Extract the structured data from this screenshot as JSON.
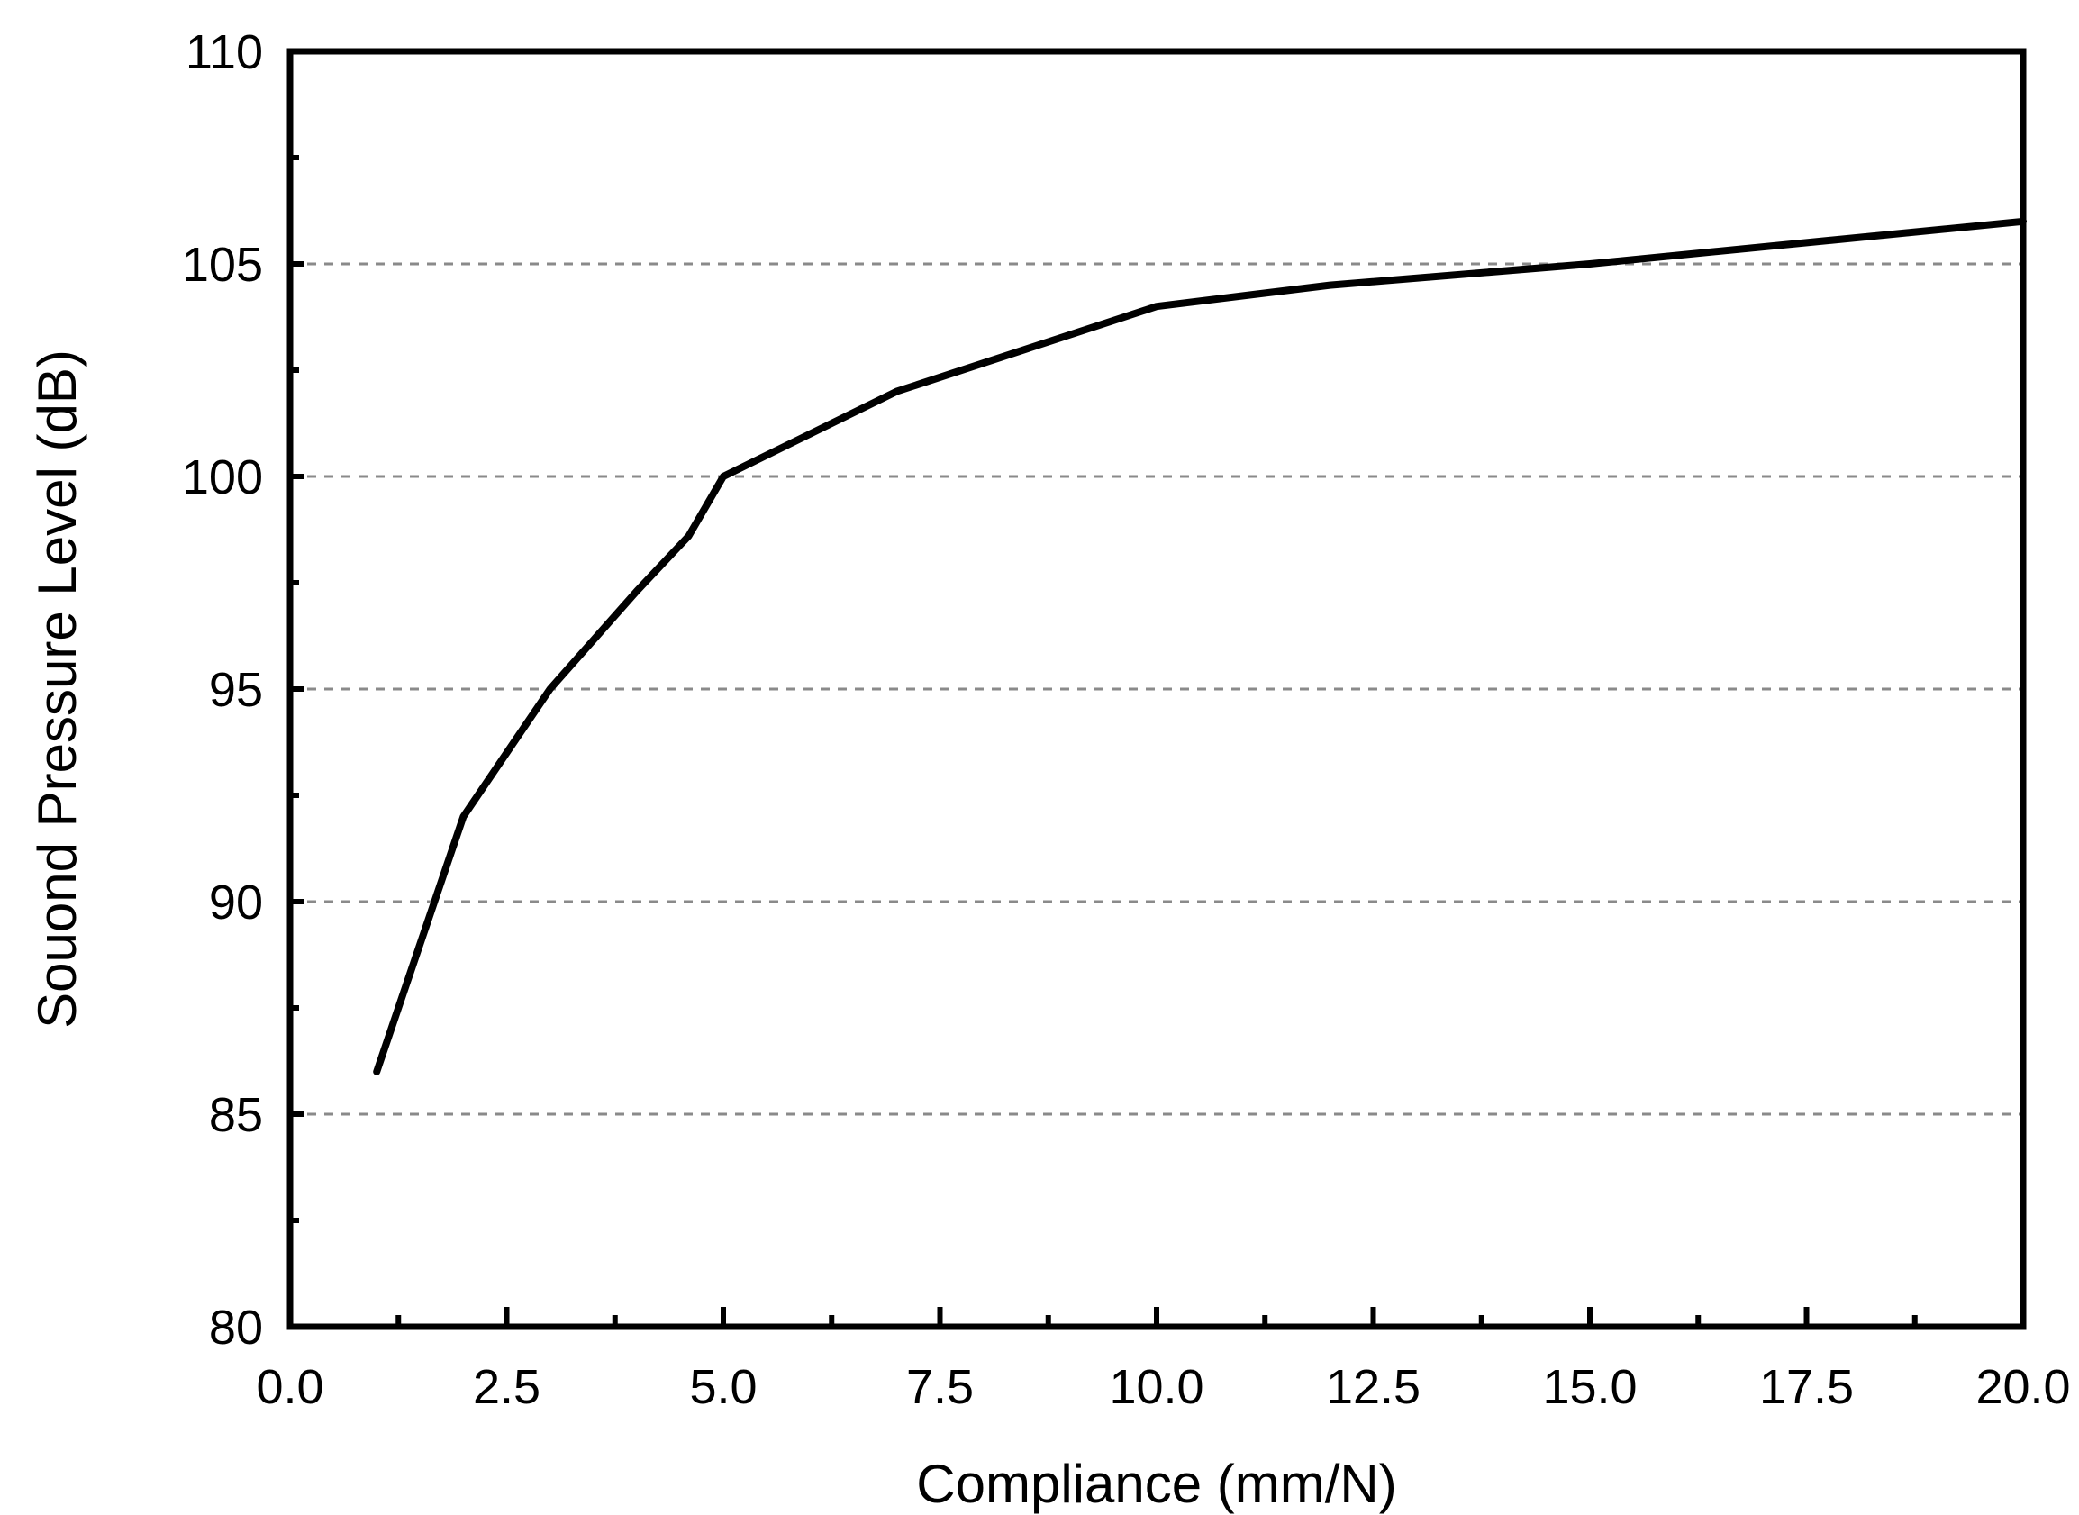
{
  "chart_data": {
    "type": "line",
    "title": "",
    "xlabel": "Compliance (mm/N)",
    "ylabel": "Souond Pressure Level (dB)",
    "xlim": [
      0,
      20
    ],
    "ylim": [
      80,
      110
    ],
    "x_ticks": [
      "0.0",
      "2.5",
      "5.0",
      "7.5",
      "10.0",
      "12.5",
      "15.0",
      "17.5",
      "20.0"
    ],
    "y_ticks": [
      "80",
      "85",
      "90",
      "95",
      "100",
      "105",
      "110"
    ],
    "grid": "horizontal dashed at major y ticks",
    "legend": "none",
    "line_color": "#000000",
    "series": [
      {
        "x": [
          1,
          2,
          3,
          4,
          4.6,
          5,
          7,
          10,
          12,
          15,
          20
        ],
        "y": [
          86,
          92,
          95,
          97.3,
          98.6,
          100,
          102,
          104,
          104.5,
          105,
          106
        ]
      }
    ]
  }
}
